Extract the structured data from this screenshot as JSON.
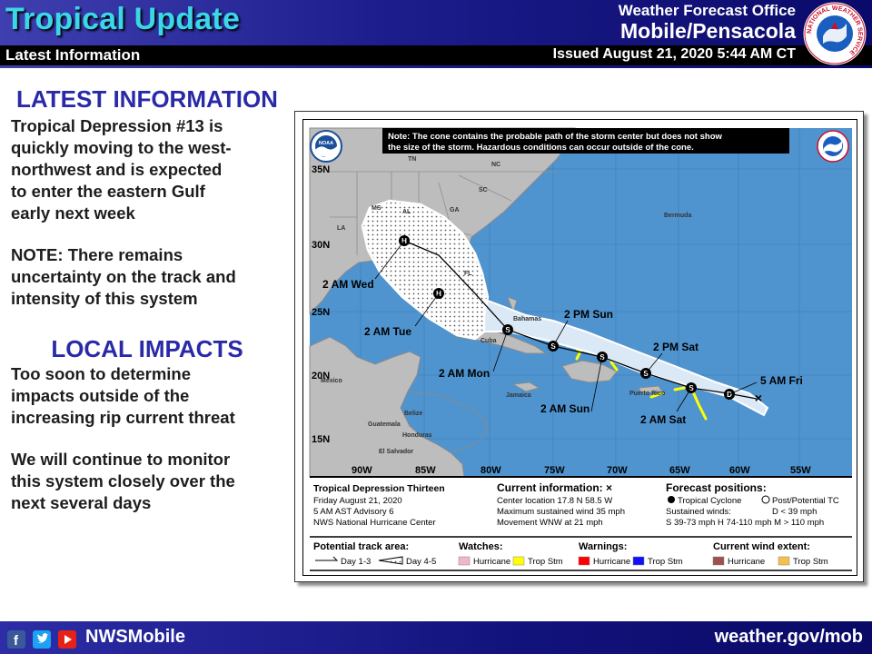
{
  "header": {
    "title": "Tropical Update",
    "subtitle": "Latest Information",
    "office_line1": "Weather Forecast Office",
    "office_line2": "Mobile/Pensacola",
    "issued": "Issued August 21, 2020 5:44 AM CT",
    "logo_ring_text": "NATIONAL WEATHER SERVICE"
  },
  "left": {
    "latest_heading": "LATEST INFORMATION",
    "latest_lines": [
      "Tropical Depression #13 is",
      "quickly moving to the west-",
      "northwest and is expected",
      "to enter the eastern Gulf",
      "early next week"
    ],
    "note_lines": [
      "NOTE: There remains",
      "uncertainty on the track and",
      "intensity of this system"
    ],
    "local_heading": "LOCAL IMPACTS",
    "local_lines": [
      "Too soon to determine",
      "impacts outside of the",
      "increasing rip current threat"
    ],
    "monitor_lines": [
      "We will continue to monitor",
      "this system closely over the",
      "next several days"
    ]
  },
  "map": {
    "note_line1": "Note: The cone contains the probable path of the storm center but does not show",
    "note_line2": "the size of the storm. Hazardous conditions can occur outside of the cone.",
    "noaa": "NOAA",
    "lat_labels": [
      "35N",
      "30N",
      "25N",
      "20N",
      "15N"
    ],
    "lon_labels": [
      "90W",
      "85W",
      "80W",
      "75W",
      "70W",
      "65W",
      "60W",
      "55W"
    ],
    "place_labels": [
      "TN",
      "NC",
      "SC",
      "GA",
      "AL",
      "MS",
      "LA",
      "FL",
      "Bermuda",
      "Bahamas",
      "Cuba",
      "Jamaica",
      "Puerto Rico",
      "Mexico",
      "Belize",
      "Guatemala",
      "Honduras",
      "El Salvador"
    ],
    "forecast_times": [
      "5 AM Fri",
      "2 PM Sat",
      "2 AM Sat",
      "2 AM Sun",
      "2 PM Sun",
      "2 AM Mon",
      "2 AM Tue",
      "2 AM Wed"
    ],
    "marker_letters": {
      "depression": "D",
      "storm": "S",
      "hurricane": "H",
      "current": "×"
    }
  },
  "legend": {
    "storm_name": "Tropical Depression Thirteen",
    "date": "Friday August 21, 2020",
    "advisory": "5 AM AST Advisory 6",
    "center": "NWS National Hurricane Center",
    "current_title": "Current information: ×",
    "current_location": "Center location 17.8 N 58.5 W",
    "current_wind": "Maximum sustained wind 35 mph",
    "current_movement": "Movement WNW at 21 mph",
    "forecast_title": "Forecast positions:",
    "tropical_cyclone": "Tropical Cyclone",
    "post_tc": "Post/Potential TC",
    "sustained": "Sustained winds:",
    "d_range": "D < 39 mph",
    "ranges": "S 39-73 mph  H 74-110 mph  M > 110 mph",
    "track_title": "Potential track area:",
    "day13": "Day 1-3",
    "day45": "Day 4-5",
    "watches_title": "Watches:",
    "warnings_title": "Warnings:",
    "wind_title": "Current wind extent:",
    "hurricane": "Hurricane",
    "trop_stm": "Trop Stm",
    "colors": {
      "watch_hurricane": "#f4b6c6",
      "watch_trop_stm": "#ffff00",
      "warn_hurricane": "#ff0000",
      "warn_trop_stm": "#1010ff",
      "wind_hurricane": "#a05050",
      "wind_trop_stm": "#f5c04a"
    }
  },
  "footer": {
    "handle": "NWSMobile",
    "url": "weather.gov/mob"
  }
}
